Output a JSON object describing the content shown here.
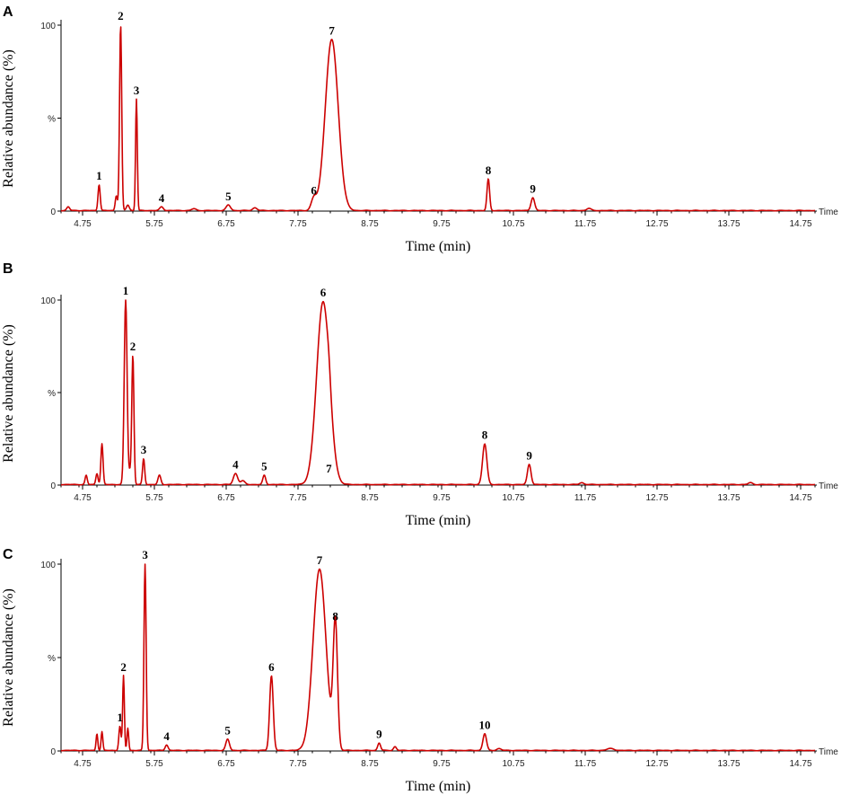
{
  "chart_data": [
    {
      "type": "line",
      "panel_label": "A",
      "ylabel": "Relative abundance (%)",
      "xlabel": "Time (min)",
      "x_axis_end_label": "Time",
      "x_ticks": [
        "4.75",
        "5.75",
        "6.75",
        "7.75",
        "8.75",
        "9.75",
        "10.75",
        "11.75",
        "12.75",
        "13.75",
        "14.75"
      ],
      "y_ticks": [
        "0",
        "%",
        "100"
      ],
      "xlim": [
        4.45,
        14.95
      ],
      "ylim": [
        0,
        100
      ],
      "peaks": [
        {
          "label": "",
          "x": 4.55,
          "y": 2,
          "w": 0.02
        },
        {
          "label": "1",
          "x": 4.98,
          "y": 14,
          "w": 0.015
        },
        {
          "label": "",
          "x": 5.22,
          "y": 8,
          "w": 0.015
        },
        {
          "label": "2",
          "x": 5.28,
          "y": 100,
          "w": 0.015
        },
        {
          "label": "",
          "x": 5.38,
          "y": 3,
          "w": 0.02
        },
        {
          "label": "3",
          "x": 5.5,
          "y": 60,
          "w": 0.012
        },
        {
          "label": "4",
          "x": 5.85,
          "y": 2,
          "w": 0.025
        },
        {
          "label": "",
          "x": 6.3,
          "y": 1,
          "w": 0.03
        },
        {
          "label": "5",
          "x": 6.78,
          "y": 3,
          "w": 0.03
        },
        {
          "label": "",
          "x": 7.15,
          "y": 1.5,
          "w": 0.03
        },
        {
          "label": "6",
          "x": 7.97,
          "y": 6,
          "w": 0.035
        },
        {
          "label": "7",
          "x": 8.22,
          "y": 92,
          "w": 0.09
        },
        {
          "label": "8",
          "x": 10.4,
          "y": 17,
          "w": 0.018
        },
        {
          "label": "9",
          "x": 11.02,
          "y": 7,
          "w": 0.025
        },
        {
          "label": "",
          "x": 11.8,
          "y": 1.2,
          "w": 0.03
        }
      ]
    },
    {
      "type": "line",
      "panel_label": "B",
      "ylabel": "Relative abundance (%)",
      "xlabel": "Time (min)",
      "x_axis_end_label": "Time",
      "x_ticks": [
        "4.75",
        "5.75",
        "6.75",
        "7.75",
        "8.75",
        "9.75",
        "10.75",
        "11.75",
        "12.75",
        "13.75",
        "14.75"
      ],
      "y_ticks": [
        "0",
        "%",
        "100"
      ],
      "xlim": [
        4.45,
        14.95
      ],
      "ylim": [
        0,
        100
      ],
      "peaks": [
        {
          "label": "",
          "x": 4.8,
          "y": 5,
          "w": 0.015
        },
        {
          "label": "",
          "x": 4.95,
          "y": 6,
          "w": 0.015
        },
        {
          "label": "",
          "x": 5.02,
          "y": 22,
          "w": 0.015
        },
        {
          "label": "1",
          "x": 5.35,
          "y": 100,
          "w": 0.02
        },
        {
          "label": "2",
          "x": 5.45,
          "y": 70,
          "w": 0.015
        },
        {
          "label": "",
          "x": 5.41,
          "y": 6,
          "w": 0.015
        },
        {
          "label": "3",
          "x": 5.6,
          "y": 14,
          "w": 0.015
        },
        {
          "label": "",
          "x": 5.82,
          "y": 5,
          "w": 0.02
        },
        {
          "label": "4",
          "x": 6.88,
          "y": 6,
          "w": 0.03
        },
        {
          "label": "",
          "x": 6.98,
          "y": 2,
          "w": 0.03
        },
        {
          "label": "5",
          "x": 7.28,
          "y": 5,
          "w": 0.02
        },
        {
          "label": "6",
          "x": 8.1,
          "y": 99,
          "w": 0.09
        },
        {
          "label": "7",
          "x": 8.18,
          "y": 4,
          "w": 0.02
        },
        {
          "label": "8",
          "x": 10.35,
          "y": 22,
          "w": 0.03
        },
        {
          "label": "9",
          "x": 10.97,
          "y": 11,
          "w": 0.025
        },
        {
          "label": "",
          "x": 11.7,
          "y": 1,
          "w": 0.03
        },
        {
          "label": "",
          "x": 14.05,
          "y": 1,
          "w": 0.03
        }
      ]
    },
    {
      "type": "line",
      "panel_label": "C",
      "ylabel": "Relative abundance (%)",
      "xlabel": "Time (min)",
      "x_axis_end_label": "Time",
      "x_ticks": [
        "4.75",
        "5.75",
        "6.75",
        "7.75",
        "8.75",
        "9.75",
        "10.75",
        "11.75",
        "12.75",
        "13.75",
        "14.75"
      ],
      "y_ticks": [
        "0",
        "%",
        "100"
      ],
      "xlim": [
        4.45,
        14.95
      ],
      "ylim": [
        0,
        100
      ],
      "peaks": [
        {
          "label": "",
          "x": 4.95,
          "y": 9,
          "w": 0.012
        },
        {
          "label": "",
          "x": 5.02,
          "y": 10,
          "w": 0.012
        },
        {
          "label": "1",
          "x": 5.27,
          "y": 13,
          "w": 0.015
        },
        {
          "label": "2",
          "x": 5.32,
          "y": 40,
          "w": 0.012
        },
        {
          "label": "",
          "x": 5.38,
          "y": 12,
          "w": 0.012
        },
        {
          "label": "3",
          "x": 5.62,
          "y": 100,
          "w": 0.015
        },
        {
          "label": "4",
          "x": 5.92,
          "y": 3,
          "w": 0.02
        },
        {
          "label": "5",
          "x": 6.77,
          "y": 6,
          "w": 0.025
        },
        {
          "label": "6",
          "x": 7.38,
          "y": 40,
          "w": 0.025
        },
        {
          "label": "7",
          "x": 8.05,
          "y": 97,
          "w": 0.09
        },
        {
          "label": "8",
          "x": 8.27,
          "y": 67,
          "w": 0.03
        },
        {
          "label": "9",
          "x": 8.88,
          "y": 4,
          "w": 0.02
        },
        {
          "label": "",
          "x": 9.1,
          "y": 2,
          "w": 0.02
        },
        {
          "label": "10",
          "x": 10.35,
          "y": 9,
          "w": 0.025
        },
        {
          "label": "",
          "x": 10.55,
          "y": 1,
          "w": 0.03
        },
        {
          "label": "",
          "x": 12.1,
          "y": 1,
          "w": 0.05
        }
      ]
    }
  ]
}
